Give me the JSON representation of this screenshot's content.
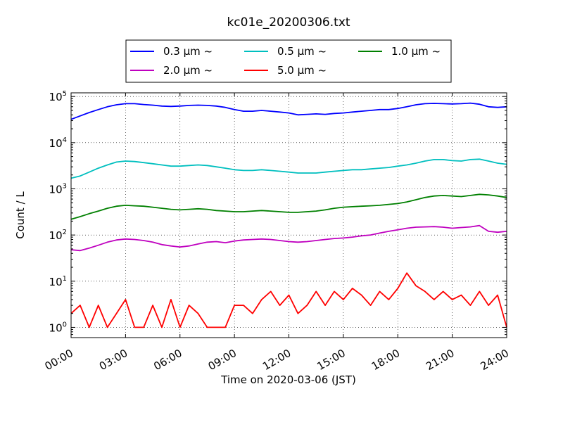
{
  "chart_data": {
    "type": "line",
    "title": "kc01e_20200306.txt",
    "xlabel": "Time on 2020-03-06 (JST)",
    "ylabel": "Count / L",
    "x_unit": "hours",
    "xlim": [
      0,
      24
    ],
    "ylim": [
      0.6,
      120000
    ],
    "yscale": "log",
    "grid": true,
    "legend_position": "top-outside",
    "x_ticks": [
      {
        "value": 0,
        "label": "00:00"
      },
      {
        "value": 3,
        "label": "03:00"
      },
      {
        "value": 6,
        "label": "06:00"
      },
      {
        "value": 9,
        "label": "09:00"
      },
      {
        "value": 12,
        "label": "12:00"
      },
      {
        "value": 15,
        "label": "15:00"
      },
      {
        "value": 18,
        "label": "18:00"
      },
      {
        "value": 21,
        "label": "21:00"
      },
      {
        "value": 24,
        "label": "24:00"
      }
    ],
    "y_ticks": [
      {
        "value": 1,
        "base": "10",
        "exp": "0"
      },
      {
        "value": 10,
        "base": "10",
        "exp": "1"
      },
      {
        "value": 100,
        "base": "10",
        "exp": "2"
      },
      {
        "value": 1000,
        "base": "10",
        "exp": "3"
      },
      {
        "value": 10000,
        "base": "10",
        "exp": "4"
      },
      {
        "value": 100000,
        "base": "10",
        "exp": "5"
      }
    ],
    "series": [
      {
        "name": "0.3 μm ~",
        "color": "#0000ff",
        "x": [
          0,
          0.5,
          1,
          1.5,
          2,
          2.5,
          3,
          3.5,
          4,
          4.5,
          5,
          5.5,
          6,
          6.5,
          7,
          7.5,
          8,
          8.5,
          9,
          9.5,
          10,
          10.5,
          11,
          11.5,
          12,
          12.5,
          13,
          13.5,
          14,
          14.5,
          15,
          15.5,
          16,
          16.5,
          17,
          17.5,
          18,
          18.5,
          19,
          19.5,
          20,
          20.5,
          21,
          21.5,
          22,
          22.5,
          23,
          23.5,
          24
        ],
        "values": [
          32000,
          38000,
          45000,
          52000,
          60000,
          66000,
          70000,
          70000,
          67000,
          65000,
          62000,
          61000,
          62000,
          64000,
          65000,
          64000,
          62000,
          58000,
          52000,
          48000,
          48000,
          50000,
          48000,
          46000,
          44000,
          40000,
          41000,
          42000,
          41000,
          43000,
          44000,
          46000,
          48000,
          50000,
          52000,
          52000,
          55000,
          60000,
          66000,
          70000,
          71000,
          70000,
          69000,
          70000,
          72000,
          68000,
          60000,
          58000,
          60000
        ]
      },
      {
        "name": "0.5 μm ~",
        "color": "#00bfbf",
        "x": [
          0,
          0.5,
          1,
          1.5,
          2,
          2.5,
          3,
          3.5,
          4,
          4.5,
          5,
          5.5,
          6,
          6.5,
          7,
          7.5,
          8,
          8.5,
          9,
          9.5,
          10,
          10.5,
          11,
          11.5,
          12,
          12.5,
          13,
          13.5,
          14,
          14.5,
          15,
          15.5,
          16,
          16.5,
          17,
          17.5,
          18,
          18.5,
          19,
          19.5,
          20,
          20.5,
          21,
          21.5,
          22,
          22.5,
          23,
          23.5,
          24
        ],
        "values": [
          1700,
          1900,
          2300,
          2800,
          3300,
          3800,
          4000,
          3900,
          3700,
          3500,
          3300,
          3100,
          3100,
          3200,
          3300,
          3200,
          3000,
          2800,
          2600,
          2500,
          2500,
          2600,
          2500,
          2400,
          2300,
          2200,
          2200,
          2200,
          2300,
          2400,
          2500,
          2600,
          2600,
          2700,
          2800,
          2900,
          3100,
          3300,
          3600,
          4000,
          4300,
          4300,
          4100,
          4000,
          4300,
          4400,
          4000,
          3600,
          3400
        ]
      },
      {
        "name": "1.0 μm ~",
        "color": "#008000",
        "x": [
          0,
          0.5,
          1,
          1.5,
          2,
          2.5,
          3,
          3.5,
          4,
          4.5,
          5,
          5.5,
          6,
          6.5,
          7,
          7.5,
          8,
          8.5,
          9,
          9.5,
          10,
          10.5,
          11,
          11.5,
          12,
          12.5,
          13,
          13.5,
          14,
          14.5,
          15,
          15.5,
          16,
          16.5,
          17,
          17.5,
          18,
          18.5,
          19,
          19.5,
          20,
          20.5,
          21,
          21.5,
          22,
          22.5,
          23,
          23.5,
          24
        ],
        "values": [
          220,
          250,
          290,
          330,
          380,
          420,
          440,
          430,
          420,
          400,
          380,
          360,
          350,
          360,
          370,
          360,
          340,
          330,
          320,
          320,
          330,
          340,
          330,
          320,
          310,
          310,
          320,
          330,
          350,
          380,
          400,
          410,
          420,
          430,
          440,
          460,
          480,
          520,
          580,
          650,
          700,
          720,
          700,
          680,
          720,
          760,
          740,
          700,
          650
        ]
      },
      {
        "name": "2.0 μm ~",
        "color": "#bf00bf",
        "x": [
          0,
          0.5,
          1,
          1.5,
          2,
          2.5,
          3,
          3.5,
          4,
          4.5,
          5,
          5.5,
          6,
          6.5,
          7,
          7.5,
          8,
          8.5,
          9,
          9.5,
          10,
          10.5,
          11,
          11.5,
          12,
          12.5,
          13,
          13.5,
          14,
          14.5,
          15,
          15.5,
          16,
          16.5,
          17,
          17.5,
          18,
          18.5,
          19,
          19.5,
          20,
          20.5,
          21,
          21.5,
          22,
          22.5,
          23,
          23.5,
          24
        ],
        "values": [
          48,
          46,
          52,
          60,
          70,
          78,
          82,
          80,
          76,
          70,
          62,
          58,
          55,
          58,
          64,
          70,
          72,
          68,
          74,
          78,
          80,
          82,
          80,
          76,
          72,
          70,
          72,
          76,
          80,
          84,
          86,
          90,
          96,
          100,
          110,
          120,
          130,
          140,
          148,
          150,
          152,
          148,
          140,
          145,
          150,
          160,
          120,
          115,
          120
        ]
      },
      {
        "name": "5.0 μm ~",
        "color": "#ff0000",
        "x": [
          0,
          0.5,
          1,
          1.5,
          2,
          2.5,
          3,
          3.5,
          4,
          4.5,
          5,
          5.5,
          6,
          6.5,
          7,
          7.5,
          8,
          8.5,
          9,
          9.5,
          10,
          10.5,
          11,
          11.5,
          12,
          12.5,
          13,
          13.5,
          14,
          14.5,
          15,
          15.5,
          16,
          16.5,
          17,
          17.5,
          18,
          18.5,
          19,
          19.5,
          20,
          20.5,
          21,
          21.5,
          22,
          22.5,
          23,
          23.5,
          24
        ],
        "values": [
          2,
          3,
          1,
          3,
          1,
          2,
          4,
          1,
          1,
          3,
          1,
          4,
          1,
          3,
          2,
          1,
          1,
          1,
          3,
          3,
          2,
          4,
          6,
          3,
          5,
          2,
          3,
          6,
          3,
          6,
          4,
          7,
          5,
          3,
          6,
          4,
          7,
          15,
          8,
          6,
          4,
          6,
          4,
          5,
          3,
          6,
          3,
          5,
          1
        ]
      }
    ]
  }
}
